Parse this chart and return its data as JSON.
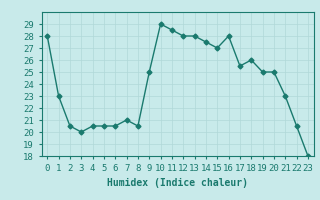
{
  "x": [
    0,
    1,
    2,
    3,
    4,
    5,
    6,
    7,
    8,
    9,
    10,
    11,
    12,
    13,
    14,
    15,
    16,
    17,
    18,
    19,
    20,
    21,
    22,
    23
  ],
  "y": [
    28.0,
    23.0,
    20.5,
    20.0,
    20.5,
    20.5,
    20.5,
    21.0,
    20.5,
    25.0,
    29.0,
    28.5,
    28.0,
    28.0,
    27.5,
    27.0,
    28.0,
    25.5,
    26.0,
    25.0,
    25.0,
    23.0,
    20.5,
    18.0
  ],
  "line_color": "#1a7a6e",
  "marker": "D",
  "marker_size": 2.5,
  "background_color": "#c8eaea",
  "grid_color": "#b0d8d8",
  "xlabel": "Humidex (Indice chaleur)",
  "ylim": [
    18,
    30
  ],
  "yticks": [
    18,
    19,
    20,
    21,
    22,
    23,
    24,
    25,
    26,
    27,
    28,
    29
  ],
  "xlim": [
    -0.5,
    23.5
  ],
  "xticks": [
    0,
    1,
    2,
    3,
    4,
    5,
    6,
    7,
    8,
    9,
    10,
    11,
    12,
    13,
    14,
    15,
    16,
    17,
    18,
    19,
    20,
    21,
    22,
    23
  ],
  "xlabel_fontsize": 7,
  "tick_fontsize": 6.5,
  "line_width": 1.0,
  "tick_color": "#1a7a6e",
  "spine_color": "#1a7a6e"
}
